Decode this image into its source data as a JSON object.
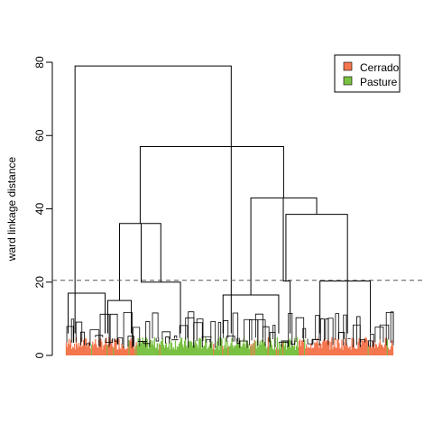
{
  "chart_data": {
    "type": "dendrogram",
    "title": "",
    "xlabel": "",
    "ylabel": "ward linkage distance",
    "ylim": [
      0,
      80
    ],
    "yticks": [
      0,
      20,
      40,
      60,
      80
    ],
    "cut_height": 20.5,
    "legend": {
      "position": "top-right",
      "entries": [
        {
          "label": "Cerrado",
          "color": "#F4764F"
        },
        {
          "label": "Pasture",
          "color": "#7AC143"
        }
      ]
    },
    "leaf_groups": [
      {
        "class": "Cerrado",
        "x_range": [
          0.0,
          0.21
        ]
      },
      {
        "class": "Pasture",
        "x_range": [
          0.21,
          0.71
        ]
      },
      {
        "class": "Cerrado",
        "x_range": [
          0.71,
          1.0
        ]
      }
    ],
    "merges": [
      {
        "id": "A",
        "height": 17.0,
        "children": [
          0.007,
          0.12
        ]
      },
      {
        "id": "B",
        "height": 15.0,
        "children": [
          0.128,
          0.2
        ]
      },
      {
        "id": "C",
        "height": 20.0,
        "children": [
          0.23,
          0.35
        ]
      },
      {
        "id": "D",
        "height": 36.0,
        "children": [
          0.164,
          0.29
        ]
      },
      {
        "id": "E",
        "height": 79.0,
        "children": [
          0.028,
          0.505
        ]
      },
      {
        "id": "F",
        "height": 16.5,
        "children": [
          0.48,
          0.65
        ]
      },
      {
        "id": "G",
        "height": 20.3,
        "children": [
          0.664,
          0.685
        ]
      },
      {
        "id": "H",
        "height": 20.3,
        "children": [
          0.776,
          0.93
        ]
      },
      {
        "id": "I",
        "height": 38.5,
        "children": [
          0.672,
          0.86
        ]
      },
      {
        "id": "J",
        "height": 43.0,
        "children": [
          0.565,
          0.766
        ]
      },
      {
        "id": "K",
        "height": 57.0,
        "children": [
          0.227,
          0.665
        ]
      }
    ]
  }
}
